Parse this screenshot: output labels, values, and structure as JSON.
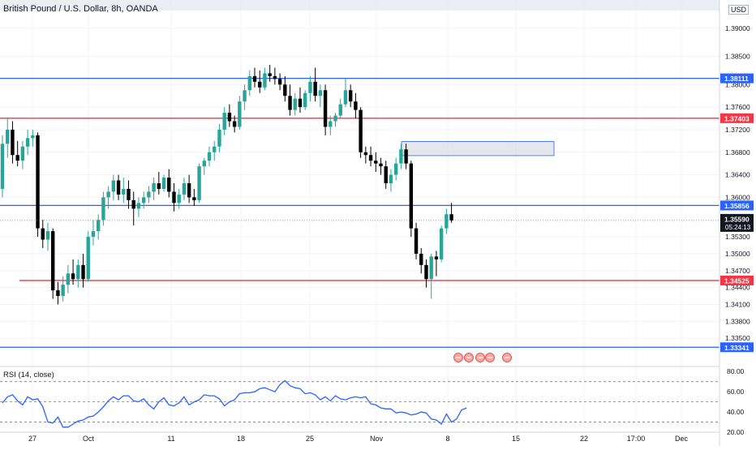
{
  "chart_data": [
    {
      "type": "candlestick",
      "title": "British Pound / U.S. Dollar, 8h, OANDA",
      "currency": "USD",
      "ylim": [
        1.33,
        1.395
      ],
      "y_ticks": [
        "1.39000",
        "1.38500",
        "1.38000",
        "1.37600",
        "1.37200",
        "1.36800",
        "1.36400",
        "1.36000",
        "1.35300",
        "1.35000",
        "1.34700",
        "1.34400",
        "1.34100",
        "1.33800",
        "1.33500"
      ],
      "x_ticks": [
        "27",
        "Oct",
        "11",
        "18",
        "25",
        "Nov",
        "8",
        "15",
        "22",
        "17:00",
        "Dec"
      ],
      "last_price": {
        "label": "1.35590",
        "countdown": "05:24:13"
      },
      "candles": [
        [
          1.3615,
          1.371,
          1.36,
          1.3695
        ],
        [
          1.3695,
          1.374,
          1.367,
          1.372
        ],
        [
          1.372,
          1.3735,
          1.366,
          1.3675
        ],
        [
          1.3675,
          1.37,
          1.3655,
          1.3665
        ],
        [
          1.3665,
          1.37,
          1.365,
          1.369
        ],
        [
          1.369,
          1.372,
          1.3675,
          1.3705
        ],
        [
          1.3705,
          1.372,
          1.369,
          1.371
        ],
        [
          1.371,
          1.3715,
          1.353,
          1.3545
        ],
        [
          1.3545,
          1.356,
          1.351,
          1.3525
        ],
        [
          1.3525,
          1.3555,
          1.3505,
          1.354
        ],
        [
          1.354,
          1.3545,
          1.342,
          1.3435
        ],
        [
          1.3435,
          1.345,
          1.341,
          1.3425
        ],
        [
          1.3425,
          1.346,
          1.3415,
          1.3445
        ],
        [
          1.3445,
          1.348,
          1.343,
          1.3465
        ],
        [
          1.3465,
          1.349,
          1.3445,
          1.3455
        ],
        [
          1.3455,
          1.349,
          1.344,
          1.348
        ],
        [
          1.348,
          1.35,
          1.344,
          1.3455
        ],
        [
          1.3455,
          1.354,
          1.345,
          1.353
        ],
        [
          1.353,
          1.356,
          1.3515,
          1.354
        ],
        [
          1.354,
          1.357,
          1.3525,
          1.356
        ],
        [
          1.356,
          1.361,
          1.355,
          1.36
        ],
        [
          1.36,
          1.362,
          1.358,
          1.361
        ],
        [
          1.361,
          1.364,
          1.3595,
          1.363
        ],
        [
          1.363,
          1.364,
          1.3595,
          1.3605
        ],
        [
          1.3605,
          1.3635,
          1.359,
          1.3615
        ],
        [
          1.3615,
          1.363,
          1.358,
          1.3595
        ],
        [
          1.3595,
          1.361,
          1.355,
          1.358
        ],
        [
          1.358,
          1.36,
          1.3565,
          1.359
        ],
        [
          1.359,
          1.361,
          1.358,
          1.36
        ],
        [
          1.36,
          1.362,
          1.359,
          1.361
        ],
        [
          1.361,
          1.3635,
          1.3595,
          1.3625
        ],
        [
          1.3625,
          1.3645,
          1.3605,
          1.3615
        ],
        [
          1.3615,
          1.364,
          1.361,
          1.3635
        ],
        [
          1.3635,
          1.365,
          1.36,
          1.361
        ],
        [
          1.361,
          1.3625,
          1.3575,
          1.359
        ],
        [
          1.359,
          1.3615,
          1.358,
          1.3605
        ],
        [
          1.3605,
          1.3635,
          1.3595,
          1.3625
        ],
        [
          1.3625,
          1.364,
          1.359,
          1.36
        ],
        [
          1.36,
          1.3615,
          1.3585,
          1.3595
        ],
        [
          1.3595,
          1.366,
          1.359,
          1.3655
        ],
        [
          1.3655,
          1.367,
          1.364,
          1.3665
        ],
        [
          1.3665,
          1.369,
          1.3655,
          1.368
        ],
        [
          1.368,
          1.37,
          1.3665,
          1.369
        ],
        [
          1.369,
          1.373,
          1.368,
          1.372
        ],
        [
          1.372,
          1.376,
          1.371,
          1.375
        ],
        [
          1.375,
          1.3765,
          1.3725,
          1.3735
        ],
        [
          1.3735,
          1.3745,
          1.3715,
          1.3725
        ],
        [
          1.3725,
          1.378,
          1.372,
          1.377
        ],
        [
          1.377,
          1.38,
          1.3755,
          1.379
        ],
        [
          1.379,
          1.3825,
          1.378,
          1.3815
        ],
        [
          1.3815,
          1.383,
          1.3795,
          1.3805
        ],
        [
          1.3805,
          1.3825,
          1.3785,
          1.3795
        ],
        [
          1.3795,
          1.383,
          1.379,
          1.382
        ],
        [
          1.382,
          1.3835,
          1.3805,
          1.3815
        ],
        [
          1.3815,
          1.383,
          1.38,
          1.381
        ],
        [
          1.381,
          1.382,
          1.379,
          1.38
        ],
        [
          1.38,
          1.3815,
          1.377,
          1.378
        ],
        [
          1.378,
          1.38,
          1.3745,
          1.3755
        ],
        [
          1.3755,
          1.3785,
          1.3745,
          1.3775
        ],
        [
          1.3775,
          1.3795,
          1.375,
          1.376
        ],
        [
          1.376,
          1.379,
          1.3755,
          1.3785
        ],
        [
          1.3785,
          1.3815,
          1.377,
          1.3805
        ],
        [
          1.3805,
          1.383,
          1.377,
          1.378
        ],
        [
          1.378,
          1.38,
          1.376,
          1.379
        ],
        [
          1.379,
          1.38,
          1.371,
          1.3725
        ],
        [
          1.3725,
          1.3745,
          1.371,
          1.3735
        ],
        [
          1.3735,
          1.375,
          1.3725,
          1.3745
        ],
        [
          1.3745,
          1.3775,
          1.374,
          1.3765
        ],
        [
          1.3765,
          1.381,
          1.376,
          1.379
        ],
        [
          1.379,
          1.38,
          1.376,
          1.377
        ],
        [
          1.377,
          1.3785,
          1.374,
          1.3755
        ],
        [
          1.3755,
          1.376,
          1.367,
          1.368
        ],
        [
          1.368,
          1.369,
          1.366,
          1.3675
        ],
        [
          1.3675,
          1.369,
          1.3655,
          1.3665
        ],
        [
          1.3665,
          1.368,
          1.3645,
          1.366
        ],
        [
          1.366,
          1.367,
          1.364,
          1.3655
        ],
        [
          1.3655,
          1.3665,
          1.3615,
          1.3625
        ],
        [
          1.3625,
          1.365,
          1.361,
          1.364
        ],
        [
          1.364,
          1.367,
          1.363,
          1.366
        ],
        [
          1.366,
          1.3695,
          1.365,
          1.3685
        ],
        [
          1.3685,
          1.3695,
          1.365,
          1.366
        ],
        [
          1.366,
          1.3665,
          1.353,
          1.3545
        ],
        [
          1.3545,
          1.3555,
          1.349,
          1.35
        ],
        [
          1.35,
          1.351,
          1.3465,
          1.348
        ],
        [
          1.348,
          1.349,
          1.344,
          1.3455
        ],
        [
          1.3455,
          1.35,
          1.342,
          1.3495
        ],
        [
          1.3495,
          1.3505,
          1.346,
          1.349
        ],
        [
          1.349,
          1.355,
          1.3485,
          1.3545
        ],
        [
          1.3545,
          1.358,
          1.3535,
          1.357
        ],
        [
          1.357,
          1.359,
          1.3555,
          1.3559
        ]
      ],
      "horizontal_levels": [
        {
          "label": "1.38111",
          "color": "#2962ff"
        },
        {
          "label": "1.37403",
          "color": "#f23645"
        },
        {
          "label": "1.35856",
          "color": "#2962ff"
        },
        {
          "label": "1.34525",
          "color": "#f23645"
        },
        {
          "label": "1.33341",
          "color": "#2962ff"
        }
      ],
      "colors": {
        "up": "#26a69a",
        "down": "#000000",
        "support": "#f23645",
        "resistance": "#2962ff"
      },
      "grid": true
    },
    {
      "type": "line",
      "title": "RSI (14, close)",
      "ylim": [
        20,
        85
      ],
      "y_ticks": [
        "80.00",
        "60.00",
        "40.00",
        "20.00"
      ],
      "levels": [
        70,
        50,
        30
      ],
      "series": [
        {
          "values": [
            49,
            55,
            57,
            51,
            47,
            55,
            52,
            53,
            45,
            30,
            29,
            35,
            25,
            25,
            28,
            31,
            32,
            35,
            36,
            40,
            45,
            51,
            55,
            52,
            56,
            56,
            51,
            50,
            53,
            47,
            43,
            50,
            54,
            47,
            46,
            49,
            55,
            47,
            50,
            52,
            57,
            56,
            56,
            53,
            46,
            50,
            52,
            58,
            59,
            59,
            60,
            63,
            64,
            62,
            60,
            67,
            71,
            66,
            64,
            63,
            58,
            59,
            57,
            52,
            55,
            51,
            56,
            53,
            52,
            54,
            55,
            54,
            55,
            48,
            47,
            44,
            43,
            43,
            39,
            40,
            39,
            37,
            38,
            40,
            39,
            33,
            32,
            28,
            38,
            30,
            33,
            42,
            44
          ]
        }
      ],
      "color": "#2962ff"
    }
  ]
}
